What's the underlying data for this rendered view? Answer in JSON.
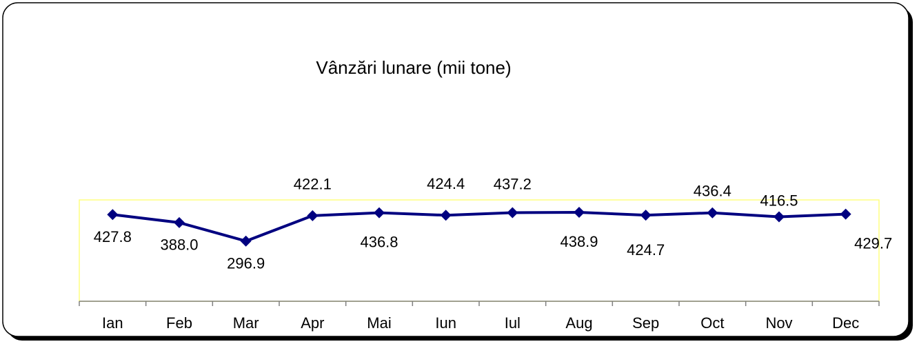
{
  "chart_data": {
    "type": "line",
    "title": "Vânzări lunare (mii tone)",
    "categories": [
      "Ian",
      "Feb",
      "Mar",
      "Apr",
      "Mai",
      "Iun",
      "Iul",
      "Aug",
      "Sep",
      "Oct",
      "Nov",
      "Dec"
    ],
    "values": [
      427.8,
      388.0,
      296.9,
      422.1,
      436.8,
      424.4,
      437.2,
      438.9,
      424.7,
      436.4,
      416.5,
      429.7
    ],
    "value_labels": [
      "427.8",
      "388.0",
      "296.9",
      "422.1",
      "436.8",
      "424.4",
      "437.2",
      "438.9",
      "424.7",
      "436.4",
      "416.5",
      "429.7"
    ],
    "color": "#000080",
    "ylim": [
      0,
      500
    ]
  }
}
